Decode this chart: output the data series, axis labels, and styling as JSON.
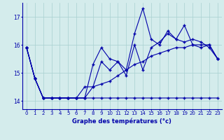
{
  "xlabel": "Graphe des températures (°c)",
  "background_color": "#d4ecec",
  "grid_color": "#a8d0d0",
  "line_color": "#0000aa",
  "xlim": [
    -0.5,
    23.5
  ],
  "ylim": [
    13.7,
    17.5
  ],
  "yticks": [
    14,
    15,
    16,
    17
  ],
  "xticks": [
    0,
    1,
    2,
    3,
    4,
    5,
    6,
    7,
    8,
    9,
    10,
    11,
    12,
    13,
    14,
    15,
    16,
    17,
    18,
    19,
    20,
    21,
    22,
    23
  ],
  "hours": [
    0,
    1,
    2,
    3,
    4,
    5,
    6,
    7,
    8,
    9,
    10,
    11,
    12,
    13,
    14,
    15,
    16,
    17,
    18,
    19,
    20,
    21,
    22,
    23
  ],
  "line1": [
    15.9,
    14.8,
    14.1,
    14.1,
    14.1,
    14.1,
    14.1,
    14.1,
    15.3,
    15.9,
    15.5,
    15.4,
    15.1,
    16.4,
    17.3,
    16.2,
    16.0,
    16.5,
    16.2,
    16.7,
    16.0,
    15.9,
    16.0,
    15.5
  ],
  "line2": [
    15.9,
    14.8,
    14.1,
    14.1,
    14.1,
    14.1,
    14.1,
    14.1,
    14.5,
    15.4,
    15.1,
    15.4,
    14.9,
    16.0,
    15.1,
    15.9,
    16.1,
    16.4,
    16.2,
    16.1,
    16.2,
    16.1,
    15.9,
    15.5
  ],
  "line3": [
    15.9,
    14.8,
    14.1,
    14.1,
    14.1,
    14.1,
    14.1,
    14.5,
    14.5,
    14.6,
    14.7,
    14.9,
    15.1,
    15.3,
    15.4,
    15.6,
    15.7,
    15.8,
    15.9,
    15.9,
    16.0,
    16.0,
    16.0,
    15.5
  ],
  "line4": [
    15.9,
    14.8,
    14.1,
    14.1,
    14.1,
    14.1,
    14.1,
    14.1,
    14.1,
    14.1,
    14.1,
    14.1,
    14.1,
    14.1,
    14.1,
    14.1,
    14.1,
    14.1,
    14.1,
    14.1,
    14.1,
    14.1,
    14.1,
    14.1
  ]
}
